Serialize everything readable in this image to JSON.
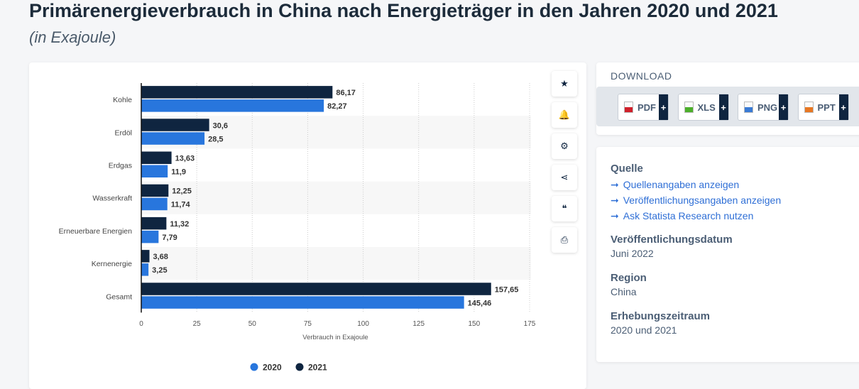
{
  "header": {
    "title": "Primärenergieverbrauch in China nach Energieträger in den Jahren 2020 und 2021",
    "subtitle": "(in Exajoule)"
  },
  "tools": [
    {
      "name": "star-icon",
      "glyph": "★"
    },
    {
      "name": "bell-icon",
      "glyph": "🔔"
    },
    {
      "name": "gear-icon",
      "glyph": "⚙"
    },
    {
      "name": "share-icon",
      "glyph": "⋖"
    },
    {
      "name": "quote-icon",
      "glyph": "❝"
    },
    {
      "name": "print-icon",
      "glyph": "⎙"
    }
  ],
  "download": {
    "title": "DOWNLOAD",
    "buttons": [
      {
        "label": "PDF",
        "color": "#d0202a"
      },
      {
        "label": "XLS",
        "color": "#4caf2a"
      },
      {
        "label": "PNG",
        "color": "#3a7bd5"
      },
      {
        "label": "PPT",
        "color": "#e87722"
      }
    ],
    "plus": "+"
  },
  "info": {
    "source_title": "Quelle",
    "links": [
      "Quellenangaben anzeigen",
      "Veröffentlichungsangaben anzeigen",
      "Ask Statista Research nutzen"
    ],
    "arrow": "➞",
    "date_title": "Veröffentlichungsdatum",
    "date": "Juni 2022",
    "region_title": "Region",
    "region": "China",
    "period_title": "Erhebungszeitraum",
    "period": "2020 und 2021"
  },
  "chart_data": {
    "type": "bar",
    "orientation": "horizontal",
    "categories": [
      "Kohle",
      "Erdöl",
      "Erdgas",
      "Wasserkraft",
      "Erneuerbare Energien",
      "Kernenergie",
      "Gesamt"
    ],
    "series": [
      {
        "name": "2021",
        "color": "#0f2540",
        "values": [
          86.17,
          30.6,
          13.63,
          12.25,
          11.32,
          3.68,
          157.65
        ]
      },
      {
        "name": "2020",
        "color": "#2876dd",
        "values": [
          82.27,
          28.5,
          11.9,
          11.74,
          7.79,
          3.25,
          145.46
        ]
      }
    ],
    "xlabel": "Verbrauch in Exajoule",
    "xlim": [
      0,
      175
    ],
    "xticks": [
      0,
      25,
      50,
      75,
      100,
      125,
      150,
      175
    ],
    "legend": [
      "2020",
      "2021"
    ],
    "legend_position": "bottom",
    "grid": true
  }
}
